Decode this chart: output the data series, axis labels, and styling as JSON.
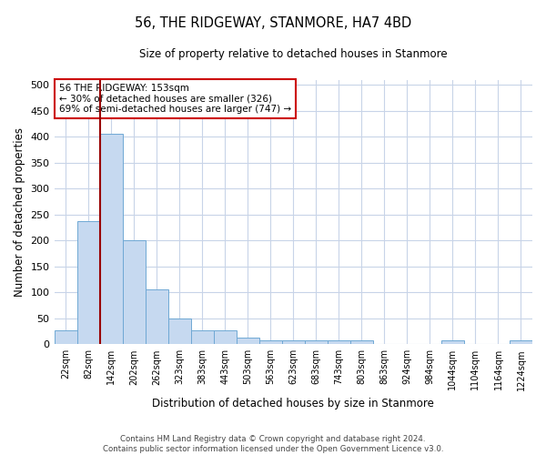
{
  "title": "56, THE RIDGEWAY, STANMORE, HA7 4BD",
  "subtitle": "Size of property relative to detached houses in Stanmore",
  "xlabel": "Distribution of detached houses by size in Stanmore",
  "ylabel": "Number of detached properties",
  "bar_color": "#c6d9f0",
  "bar_edge_color": "#6fa8d4",
  "grid_color": "#c8d4e8",
  "annotation_line_color": "#990000",
  "annotation_box_color": "#cc0000",
  "annotation_text": "56 THE RIDGEWAY: 153sqm\n← 30% of detached houses are smaller (326)\n69% of semi-detached houses are larger (747) →",
  "categories": [
    "22sqm",
    "82sqm",
    "142sqm",
    "202sqm",
    "262sqm",
    "323sqm",
    "383sqm",
    "443sqm",
    "503sqm",
    "563sqm",
    "623sqm",
    "683sqm",
    "743sqm",
    "803sqm",
    "863sqm",
    "924sqm",
    "984sqm",
    "1044sqm",
    "1104sqm",
    "1164sqm",
    "1224sqm"
  ],
  "values": [
    27,
    238,
    405,
    200,
    105,
    50,
    27,
    27,
    12,
    8,
    8,
    8,
    8,
    7,
    0,
    0,
    0,
    7,
    0,
    0,
    7
  ],
  "ylim": [
    0,
    510
  ],
  "yticks": [
    0,
    50,
    100,
    150,
    200,
    250,
    300,
    350,
    400,
    450,
    500
  ],
  "red_line_index": 2,
  "footer_line1": "Contains HM Land Registry data © Crown copyright and database right 2024.",
  "footer_line2": "Contains public sector information licensed under the Open Government Licence v3.0.",
  "background_color": "#ffffff",
  "fig_width": 6.0,
  "fig_height": 5.0
}
